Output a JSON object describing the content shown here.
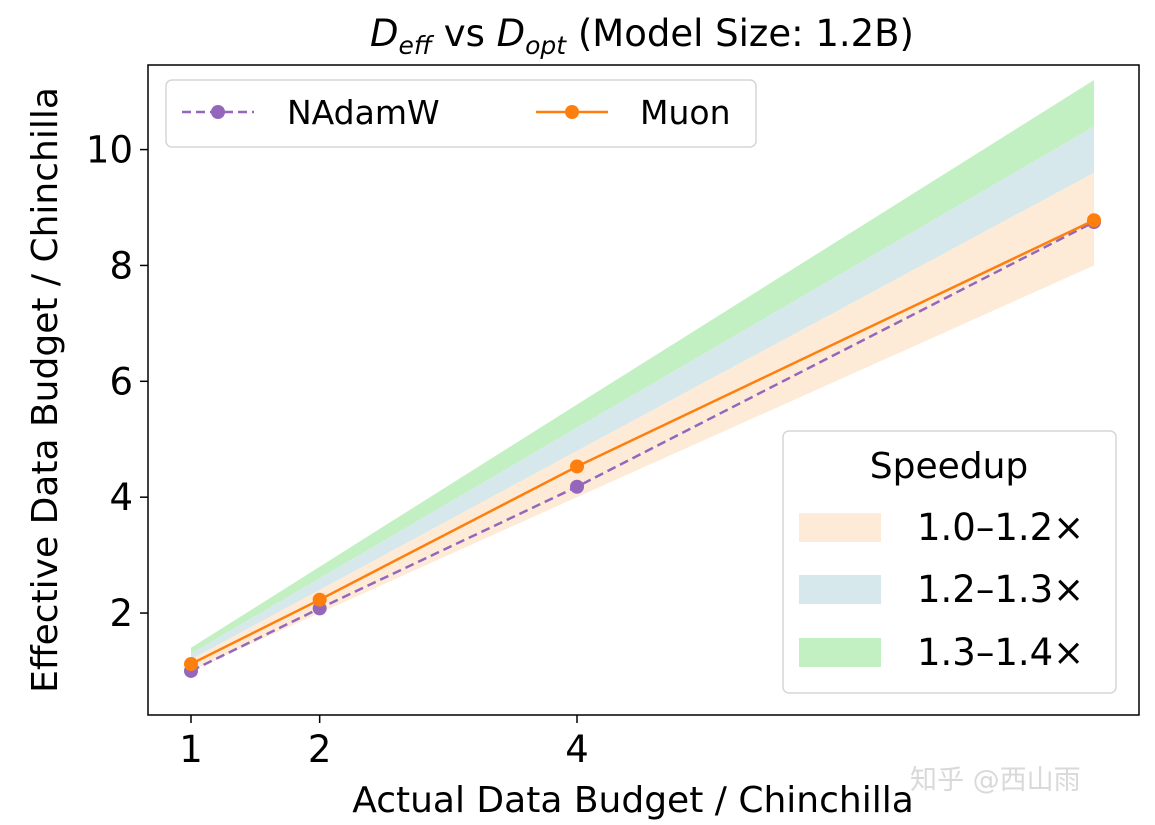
{
  "chart_data": {
    "type": "line",
    "title": {
      "var1_main": "D",
      "var1_sub": "eff",
      "mid": " vs ",
      "var2_main": "D",
      "var2_sub": "opt",
      "rest": " (Model Size: 1.2B)"
    },
    "xlabel": "Actual Data Budget / Chinchilla",
    "ylabel": "Effective Data Budget / Chinchilla",
    "xlim": [
      0.66,
      8.4
    ],
    "ylim": [
      0.24,
      11.46
    ],
    "xticks": [
      1,
      2,
      4
    ],
    "xtick_labels": [
      "1",
      "2",
      "4"
    ],
    "yticks": [
      2,
      4,
      6,
      8,
      10
    ],
    "ytick_labels": [
      "2",
      "4",
      "6",
      "8",
      "10"
    ],
    "series": [
      {
        "name": "NAdamW",
        "x": [
          1,
          2,
          4,
          8
        ],
        "y": [
          1.0,
          2.08,
          4.18,
          8.75
        ],
        "color": "#9467bd",
        "linestyle": "dashed",
        "marker": "circle"
      },
      {
        "name": "Muon",
        "x": [
          1,
          2,
          4,
          8
        ],
        "y": [
          1.12,
          2.23,
          4.53,
          8.78
        ],
        "color": "#ff7f0e",
        "linestyle": "solid",
        "marker": "circle"
      }
    ],
    "bands": [
      {
        "label": "1.0–1.2×",
        "low": 1.0,
        "high": 1.2,
        "color": "#fdebd7"
      },
      {
        "label": "1.2–1.3×",
        "low": 1.2,
        "high": 1.3,
        "color": "#d7e8ed"
      },
      {
        "label": "1.3–1.4×",
        "low": 1.3,
        "high": 1.4,
        "color": "#c3f0c3"
      }
    ],
    "band_ref_factor": 1.0,
    "legend_series_placement": "upper-left",
    "legend_bands_title": "Speedup",
    "legend_bands_placement": "lower-right",
    "grid": false
  },
  "watermark": "知乎 @西山雨"
}
